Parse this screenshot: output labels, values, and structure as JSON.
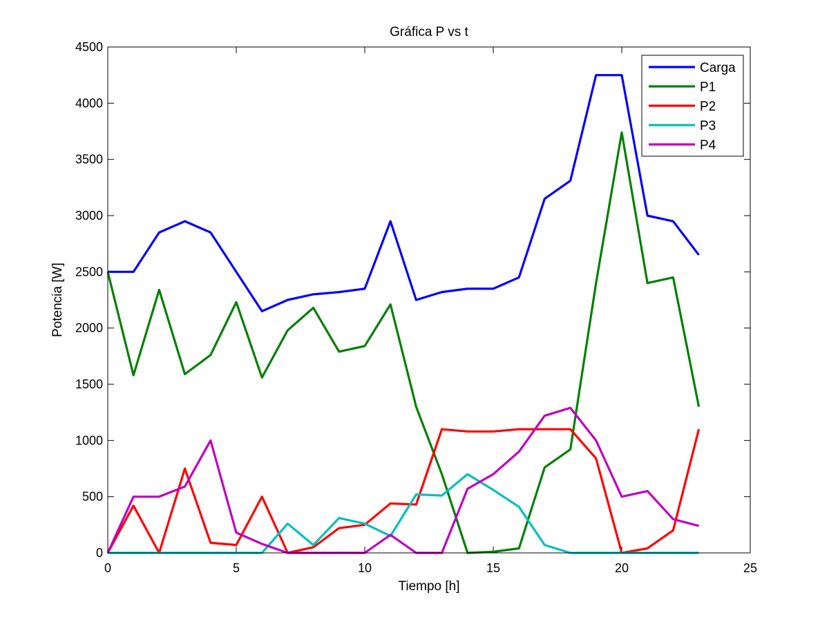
{
  "chart_data": {
    "type": "line",
    "title": "Gráfica P vs t",
    "xlabel": "Tiempo [h]",
    "ylabel": "Potencia [W]",
    "xlim": [
      0,
      25
    ],
    "ylim": [
      0,
      4500
    ],
    "xticks": [
      0,
      5,
      10,
      15,
      20,
      25
    ],
    "yticks": [
      0,
      500,
      1000,
      1500,
      2000,
      2500,
      3000,
      3500,
      4000,
      4500
    ],
    "grid": false,
    "legend_position": "top-right",
    "x": [
      0,
      1,
      2,
      3,
      4,
      5,
      6,
      7,
      8,
      9,
      10,
      11,
      12,
      13,
      14,
      15,
      16,
      17,
      18,
      19,
      20,
      21,
      22,
      23
    ],
    "series": [
      {
        "name": "Carga",
        "color": "#0000ff",
        "values": [
          2500,
          2500,
          2850,
          2950,
          2850,
          2500,
          2150,
          2250,
          2300,
          2320,
          2350,
          2950,
          2250,
          2320,
          2350,
          2350,
          2450,
          3150,
          3310,
          4250,
          4250,
          3000,
          2950,
          2650
        ]
      },
      {
        "name": "P1",
        "color": "#008000",
        "values": [
          2500,
          1580,
          2340,
          1590,
          1760,
          2230,
          1560,
          1980,
          2180,
          1790,
          1840,
          2210,
          1300,
          700,
          0,
          10,
          40,
          760,
          920,
          2400,
          3740,
          2400,
          2450,
          1300
        ]
      },
      {
        "name": "P2",
        "color": "#ff0000",
        "values": [
          0,
          420,
          0,
          750,
          90,
          70,
          500,
          0,
          50,
          220,
          250,
          440,
          430,
          1100,
          1080,
          1080,
          1100,
          1100,
          1100,
          840,
          0,
          40,
          200,
          1100
        ]
      },
      {
        "name": "P3",
        "color": "#00bfbf",
        "values": [
          0,
          0,
          0,
          0,
          0,
          0,
          0,
          260,
          70,
          310,
          260,
          150,
          520,
          510,
          700,
          560,
          410,
          70,
          0,
          0,
          0,
          0,
          0,
          0
        ]
      },
      {
        "name": "P4",
        "color": "#bf00bf",
        "values": [
          0,
          500,
          500,
          590,
          1000,
          180,
          80,
          0,
          0,
          0,
          0,
          160,
          0,
          0,
          570,
          700,
          900,
          1220,
          1290,
          1000,
          500,
          550,
          300,
          240
        ]
      }
    ]
  }
}
